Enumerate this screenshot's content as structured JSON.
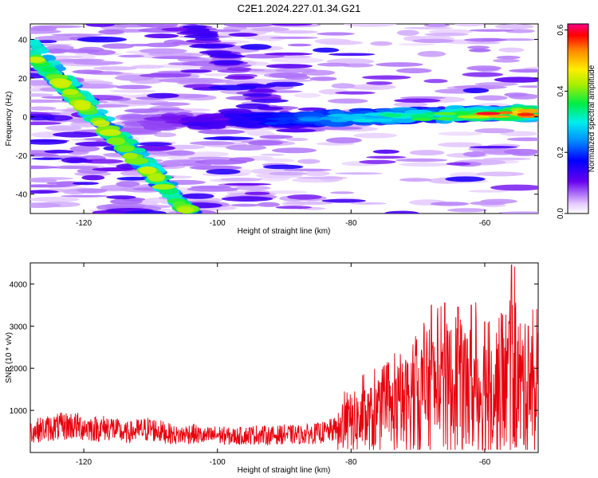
{
  "title": "C2E1.2024.227.01.34.G21",
  "chart_data": [
    {
      "type": "heatmap",
      "xlabel": "Height of straight line (km)",
      "ylabel": "Frequency (Hz)",
      "xlim": [
        -128,
        -52
      ],
      "ylim": [
        -50,
        48
      ],
      "x_ticks": [
        -120,
        -100,
        -80,
        -60
      ],
      "y_ticks": [
        -40,
        -20,
        0,
        20,
        40
      ],
      "colorbar": {
        "label": "Normalized spectral amplitude",
        "range": [
          0.0,
          0.62
        ],
        "ticks": [
          "0.0",
          "0.2",
          "0.4",
          "0.6"
        ]
      },
      "features": [
        {
          "name": "main_band",
          "x_range": [
            -114,
            -53
          ],
          "frequency": [
            -4,
            3
          ],
          "peak_amplitude": 0.6
        },
        {
          "name": "diagonal_streak",
          "x_start": -128,
          "freq_start": 33,
          "x_end": -104,
          "freq_end": -50,
          "peak_amplitude": 0.45
        }
      ],
      "grid": false
    },
    {
      "type": "line",
      "xlabel": "Height of straight line (km)",
      "ylabel": "SNR (10 * v/v)",
      "xlim": [
        -128,
        -52
      ],
      "ylim": [
        0,
        4500
      ],
      "x_ticks": [
        -120,
        -100,
        -80,
        -60
      ],
      "y_ticks": [
        1000,
        2000,
        3000,
        4000
      ],
      "color": "#e8000b",
      "series": [
        {
          "values": [
            [
              -128,
              500
            ],
            [
              -126,
              560
            ],
            [
              -124,
              600
            ],
            [
              -122,
              640
            ],
            [
              -120,
              600
            ],
            [
              -118,
              560
            ],
            [
              -116,
              600
            ],
            [
              -114,
              450
            ],
            [
              -112,
              520
            ],
            [
              -110,
              560
            ],
            [
              -108,
              480
            ],
            [
              -106,
              400
            ],
            [
              -104,
              460
            ],
            [
              -102,
              380
            ],
            [
              -100,
              420
            ],
            [
              -98,
              380
            ],
            [
              -96,
              400
            ],
            [
              -94,
              430
            ],
            [
              -92,
              400
            ],
            [
              -90,
              430
            ],
            [
              -88,
              420
            ],
            [
              -86,
              440
            ],
            [
              -84,
              480
            ],
            [
              -82,
              560
            ],
            [
              -80,
              700
            ],
            [
              -78,
              750
            ],
            [
              -76,
              820
            ],
            [
              -74,
              920
            ],
            [
              -72,
              1100
            ],
            [
              -70,
              1350
            ],
            [
              -68,
              1450
            ],
            [
              -66,
              1500
            ],
            [
              -64,
              1550
            ],
            [
              -62,
              1500
            ],
            [
              -60,
              1450
            ],
            [
              -58,
              1550
            ],
            [
              -56,
              1850
            ],
            [
              -54,
              1500
            ],
            [
              -52,
              1400
            ]
          ],
          "peaks": [
            [
              -68,
              3500
            ],
            [
              -66,
              3550
            ],
            [
              -64,
              3450
            ],
            [
              -62,
              3500
            ],
            [
              -60,
              3100
            ],
            [
              -57.5,
              3300
            ],
            [
              -56,
              4450
            ],
            [
              -53.5,
              3000
            ]
          ]
        }
      ],
      "grid": false
    }
  ]
}
